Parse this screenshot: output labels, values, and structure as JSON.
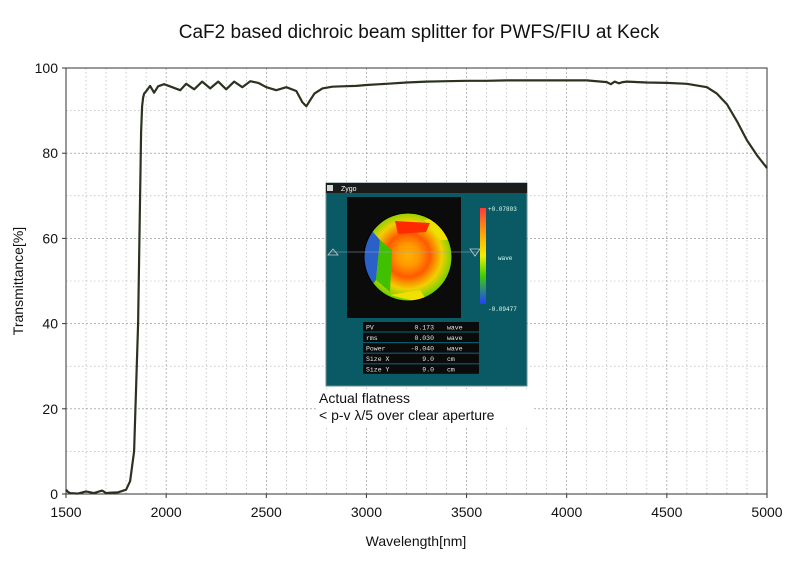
{
  "chart_data": {
    "type": "line",
    "title": "CaF2 based dichroic beam splitter for PWFS/FIU at Keck",
    "xlabel": "Wavelength[nm]",
    "ylabel": "Transmittance[%]",
    "xlim": [
      1500,
      5000
    ],
    "ylim": [
      0,
      100
    ],
    "x_ticks": [
      1500,
      2000,
      2500,
      3000,
      3500,
      4000,
      4500,
      5000
    ],
    "y_ticks": [
      0,
      20,
      40,
      60,
      80,
      100
    ],
    "x_tick_labels": [
      "1500",
      "2000",
      "2500",
      "3000",
      "3500",
      "4000",
      "4500",
      "5000"
    ],
    "y_tick_labels": [
      "0",
      "20",
      "40",
      "60",
      "80",
      "100"
    ],
    "grid": true,
    "line_color": "#2b3320",
    "series": [
      {
        "x": [
          1500,
          1510,
          1520,
          1560,
          1600,
          1640,
          1680,
          1700,
          1720,
          1760,
          1800,
          1820,
          1840,
          1860,
          1870,
          1875,
          1880,
          1885,
          1890,
          1900,
          1920,
          1940,
          1960,
          1990,
          2030,
          2070,
          2100,
          2140,
          2180,
          2220,
          2260,
          2300,
          2340,
          2380,
          2420,
          2460,
          2500,
          2550,
          2600,
          2650,
          2680,
          2700,
          2720,
          2740,
          2780,
          2830,
          2880,
          2950,
          3000,
          3100,
          3200,
          3300,
          3400,
          3500,
          3600,
          3700,
          3800,
          3900,
          4000,
          4100,
          4200,
          4220,
          4240,
          4260,
          4280,
          4300,
          4400,
          4500,
          4600,
          4700,
          4750,
          4800,
          4850,
          4900,
          4950,
          5000
        ],
        "y": [
          1.0,
          0.5,
          0.2,
          0.1,
          0.6,
          0.2,
          0.8,
          0.2,
          0.3,
          0.4,
          1.0,
          3,
          10,
          40,
          70,
          85,
          91,
          93,
          94,
          94.5,
          95.8,
          94.2,
          95.7,
          96.2,
          95.5,
          94.8,
          96.3,
          95.0,
          96.8,
          95.2,
          96.8,
          95.0,
          96.8,
          95.5,
          96.9,
          96.5,
          95.5,
          94.8,
          95.5,
          94.6,
          92.0,
          91.0,
          92.5,
          94.0,
          95.2,
          95.6,
          95.7,
          95.8,
          96.0,
          96.3,
          96.6,
          96.8,
          96.9,
          97.0,
          97.0,
          97.1,
          97.1,
          97.1,
          97.1,
          97.1,
          96.7,
          96.2,
          96.8,
          96.4,
          96.7,
          96.8,
          96.6,
          96.5,
          96.3,
          95.5,
          94.0,
          91.5,
          87.5,
          83.0,
          79.5,
          76.5
        ]
      }
    ],
    "inset": {
      "app_label": "Zygo",
      "scale_max": "+0.07803",
      "scale_min": "-0.09477",
      "scale_unit": "wave",
      "measurements": [
        {
          "name": "PV",
          "value": "0.173",
          "unit": "wave"
        },
        {
          "name": "rms",
          "value": "0.030",
          "unit": "wave"
        },
        {
          "name": "Power",
          "value": "-0.040",
          "unit": "wave"
        },
        {
          "name": "Size X",
          "value": "9.0",
          "unit": "cm"
        },
        {
          "name": "Size Y",
          "value": "9.0",
          "unit": "cm"
        }
      ]
    },
    "annotation": {
      "line1": "Actual flatness",
      "line2": "< p-v λ/5 over clear aperture"
    }
  }
}
